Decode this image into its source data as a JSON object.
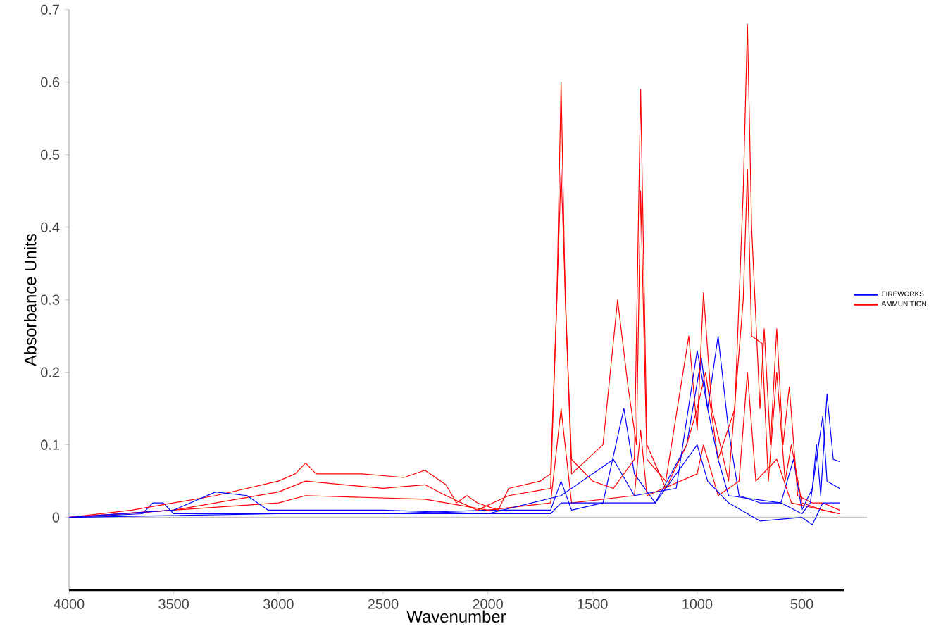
{
  "chart_data": {
    "type": "line",
    "xlabel": "Wavenumber",
    "ylabel": "Absorbance Units",
    "xlim": [
      4000,
      300
    ],
    "ylim": [
      -0.1,
      0.7
    ],
    "xticks": [
      4000,
      3500,
      3000,
      2500,
      2000,
      1500,
      1000,
      500
    ],
    "yticks": [
      0,
      0.1,
      0.2,
      0.3,
      0.4,
      0.5,
      0.6,
      0.7
    ],
    "legend": "right",
    "line_style": "solid",
    "ref_lines": [
      {
        "axis": "y",
        "value": 0,
        "color": "#c8c8c8"
      }
    ],
    "series": [
      {
        "name": "FIREWORKS",
        "color": "#0000ff",
        "x": [
          4000,
          3650,
          3600,
          3550,
          3500,
          3000,
          2500,
          2000,
          1700,
          1650,
          1600,
          1450,
          1350,
          1300,
          1200,
          1050,
          980,
          950,
          900,
          850,
          800,
          700,
          600,
          540,
          500,
          450,
          430,
          410,
          380,
          350,
          320
        ],
        "values": [
          0,
          0.005,
          0.02,
          0.02,
          0.005,
          0.005,
          0.005,
          0.01,
          0.01,
          0.05,
          0.01,
          0.02,
          0.15,
          0.06,
          0.02,
          0.1,
          0.22,
          0.15,
          0.25,
          0.12,
          0.03,
          0.02,
          0.02,
          0.08,
          0.01,
          0.04,
          0.1,
          0.03,
          0.17,
          0.08,
          0.077
        ]
      },
      {
        "name": "AMMUNITION",
        "color": "#ff0000",
        "x": [
          4000,
          3700,
          3300,
          3000,
          2920,
          2870,
          2820,
          2600,
          2400,
          2300,
          2200,
          2150,
          2100,
          2050,
          1950,
          1900,
          1750,
          1700,
          1670,
          1650,
          1630,
          1600,
          1500,
          1400,
          1300,
          1270,
          1240,
          1150,
          1050,
          1000,
          960,
          900,
          820,
          780,
          760,
          740,
          700,
          680,
          650,
          620,
          590,
          560,
          520,
          450,
          400,
          320
        ],
        "values": [
          0,
          0.01,
          0.03,
          0.05,
          0.06,
          0.075,
          0.06,
          0.06,
          0.055,
          0.065,
          0.045,
          0.02,
          0.03,
          0.02,
          0.01,
          0.04,
          0.05,
          0.06,
          0.3,
          0.6,
          0.3,
          0.08,
          0.05,
          0.04,
          0.08,
          0.59,
          0.1,
          0.04,
          0.1,
          0.15,
          0.2,
          0.08,
          0.15,
          0.45,
          0.68,
          0.4,
          0.15,
          0.26,
          0.1,
          0.26,
          0.1,
          0.18,
          0.03,
          0.02,
          0.02,
          0.01
        ]
      },
      {
        "color": "#ff0000",
        "x": [
          4000,
          3500,
          3000,
          2870,
          2500,
          2300,
          2200,
          2050,
          1900,
          1700,
          1650,
          1600,
          1450,
          1380,
          1330,
          1290,
          1270,
          1240,
          1150,
          1040,
          1000,
          970,
          930,
          850,
          780,
          760,
          740,
          690,
          660,
          620,
          580,
          550,
          500,
          400,
          320
        ],
        "values": [
          0,
          0.01,
          0.035,
          0.05,
          0.04,
          0.045,
          0.03,
          0.01,
          0.03,
          0.04,
          0.48,
          0.06,
          0.1,
          0.3,
          0.18,
          0.1,
          0.45,
          0.08,
          0.05,
          0.25,
          0.12,
          0.31,
          0.15,
          0.05,
          0.3,
          0.48,
          0.25,
          0.24,
          0.05,
          0.2,
          0.05,
          0.1,
          0.02,
          0.01,
          0.005
        ]
      },
      {
        "color": "#ff0000",
        "x": [
          4000,
          3000,
          2870,
          2300,
          2000,
          1700,
          1650,
          1600,
          1300,
          1270,
          1240,
          1000,
          970,
          900,
          800,
          760,
          720,
          620,
          550,
          320
        ],
        "values": [
          0,
          0.02,
          0.03,
          0.025,
          0.01,
          0.02,
          0.15,
          0.02,
          0.03,
          0.12,
          0.03,
          0.06,
          0.1,
          0.03,
          0.05,
          0.2,
          0.05,
          0.08,
          0.02,
          0.005
        ]
      },
      {
        "color": "#0000ff",
        "x": [
          4000,
          3500,
          3300,
          3150,
          3050,
          2500,
          2000,
          1650,
          1400,
          1300,
          1100,
          1000,
          950,
          900,
          850,
          600,
          500,
          460,
          400,
          380,
          320
        ],
        "values": [
          0,
          0.01,
          0.035,
          0.03,
          0.01,
          0.01,
          0.005,
          0.03,
          0.08,
          0.03,
          0.04,
          0.23,
          0.15,
          0.08,
          0.03,
          0.02,
          0.005,
          0.02,
          0.14,
          0.05,
          0.04
        ]
      },
      {
        "color": "#0000ff",
        "x": [
          4000,
          3000,
          1700,
          1650,
          1200,
          1000,
          950,
          850,
          700,
          500,
          450,
          400,
          320
        ],
        "values": [
          0,
          0.005,
          0.005,
          0.02,
          0.02,
          0.1,
          0.05,
          0.02,
          -0.005,
          0,
          -0.01,
          0.02,
          0.02
        ]
      }
    ]
  }
}
